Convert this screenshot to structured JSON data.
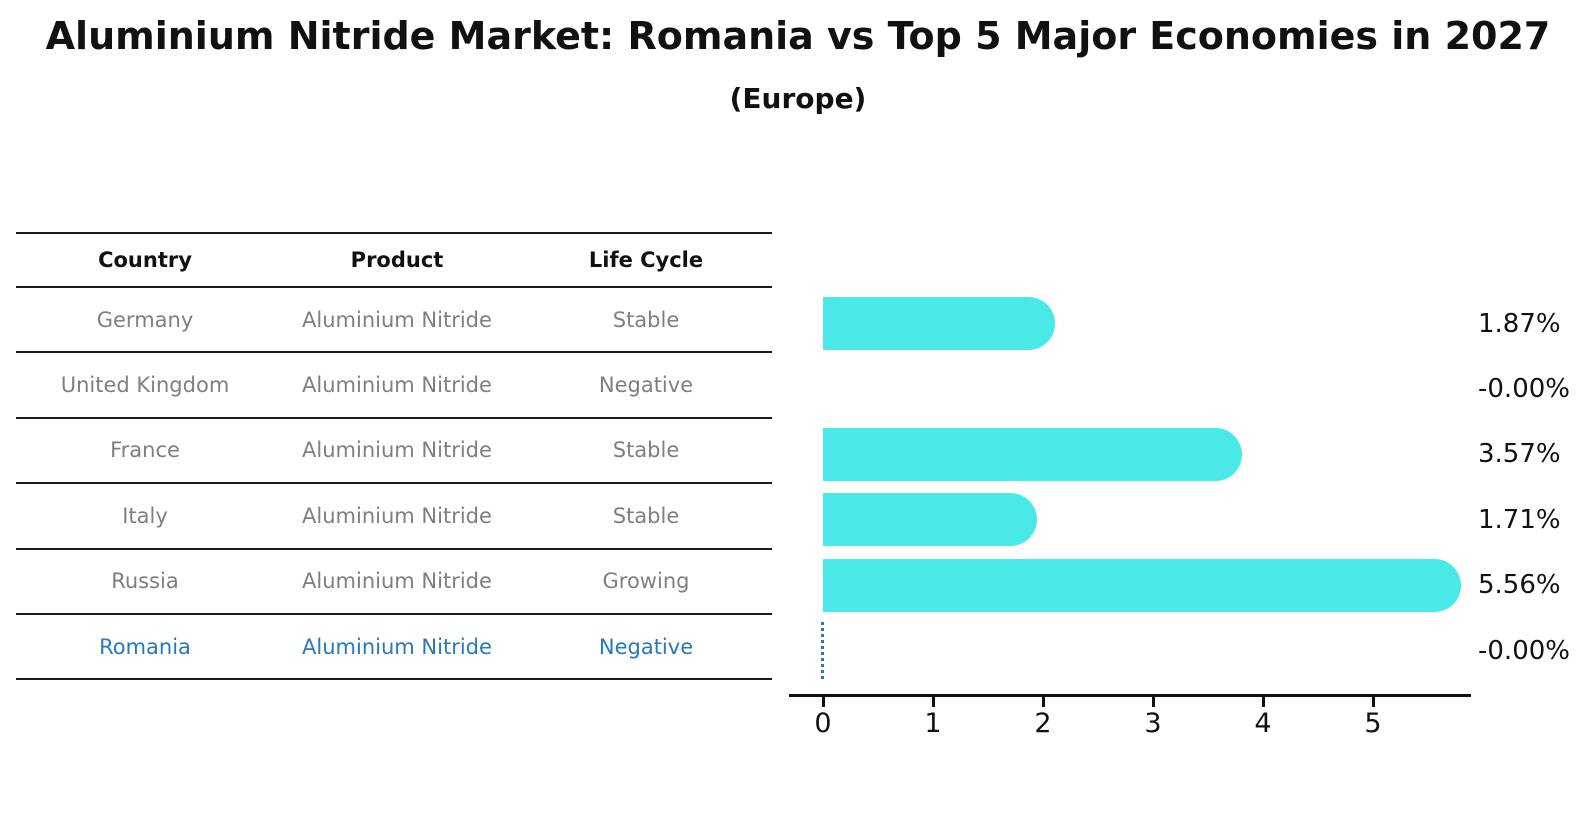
{
  "header": {
    "title": "Aluminium Nitride Market: Romania vs Top 5 Major Economies in 2027",
    "subtitle": "(Europe)"
  },
  "table": {
    "headers": [
      "Country",
      "Product",
      "Life Cycle"
    ],
    "rows": [
      {
        "country": "Germany",
        "product": "Aluminium Nitride",
        "life_cycle": "Stable",
        "highlight": false
      },
      {
        "country": "United Kingdom",
        "product": "Aluminium Nitride",
        "life_cycle": "Negative",
        "highlight": false
      },
      {
        "country": "France",
        "product": "Aluminium Nitride",
        "life_cycle": "Stable",
        "highlight": false
      },
      {
        "country": "Italy",
        "product": "Aluminium Nitride",
        "life_cycle": "Stable",
        "highlight": false
      },
      {
        "country": "Russia",
        "product": "Aluminium Nitride",
        "life_cycle": "Growing",
        "highlight": false
      },
      {
        "country": "Romania",
        "product": "Aluminium Nitride",
        "life_cycle": "Negative",
        "highlight": true
      }
    ]
  },
  "chart_data": {
    "type": "bar",
    "orientation": "horizontal",
    "categories": [
      "Germany",
      "United Kingdom",
      "France",
      "Italy",
      "Russia",
      "Romania"
    ],
    "values": [
      1.87,
      -0.0,
      3.57,
      1.71,
      5.56,
      -0.0
    ],
    "value_labels": [
      "1.87%",
      "-0.00%",
      "3.57%",
      "1.71%",
      "5.56%",
      "-0.00%"
    ],
    "xticks": [
      0,
      1,
      2,
      3,
      4,
      5
    ],
    "xlim": [
      0,
      5.88
    ],
    "grid": false,
    "legend": "none",
    "bar_color": "#4be8e8",
    "highlight_color": "#2878be",
    "highlight_index": 5,
    "highlight_marker": "dotted-zero-line"
  }
}
